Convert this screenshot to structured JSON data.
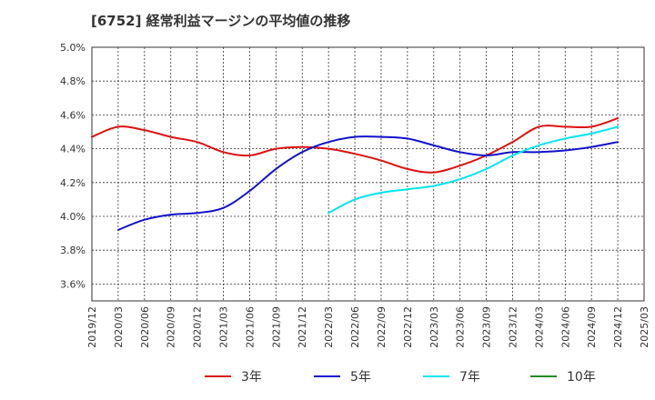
{
  "chart_data": {
    "type": "line",
    "title": "[6752]  経常利益マージンの平均値の推移",
    "ylim": [
      3.5,
      5.0
    ],
    "yticks": [
      "3.6%",
      "3.8%",
      "4.0%",
      "4.2%",
      "4.4%",
      "4.6%",
      "4.8%",
      "5.0%"
    ],
    "ytick_values": [
      3.6,
      3.8,
      4.0,
      4.2,
      4.4,
      4.6,
      4.8,
      5.0
    ],
    "xticks": [
      "2019/12",
      "2020/03",
      "2020/06",
      "2020/09",
      "2020/12",
      "2021/03",
      "2021/06",
      "2021/09",
      "2021/12",
      "2022/03",
      "2022/06",
      "2022/09",
      "2022/12",
      "2023/03",
      "2023/06",
      "2023/09",
      "2023/12",
      "2024/03",
      "2024/06",
      "2024/09",
      "2024/12",
      "2025/03"
    ],
    "grid": true,
    "legend_position": "bottom",
    "series": [
      {
        "name": "3年",
        "color": "#dd1111",
        "points": [
          [
            "2019/12",
            4.47
          ],
          [
            "2020/03",
            4.53
          ],
          [
            "2020/06",
            4.51
          ],
          [
            "2020/09",
            4.47
          ],
          [
            "2020/12",
            4.44
          ],
          [
            "2021/03",
            4.38
          ],
          [
            "2021/06",
            4.36
          ],
          [
            "2021/09",
            4.4
          ],
          [
            "2021/12",
            4.41
          ],
          [
            "2022/03",
            4.4
          ],
          [
            "2022/06",
            4.37
          ],
          [
            "2022/09",
            4.33
          ],
          [
            "2022/12",
            4.28
          ],
          [
            "2023/03",
            4.26
          ],
          [
            "2023/06",
            4.3
          ],
          [
            "2023/09",
            4.36
          ],
          [
            "2023/12",
            4.44
          ],
          [
            "2024/03",
            4.53
          ],
          [
            "2024/06",
            4.53
          ],
          [
            "2024/09",
            4.53
          ],
          [
            "2024/12",
            4.58
          ]
        ]
      },
      {
        "name": "5年",
        "color": "#1111cc",
        "points": [
          [
            "2020/03",
            3.92
          ],
          [
            "2020/06",
            3.98
          ],
          [
            "2020/09",
            4.01
          ],
          [
            "2020/12",
            4.02
          ],
          [
            "2021/03",
            4.05
          ],
          [
            "2021/06",
            4.15
          ],
          [
            "2021/09",
            4.28
          ],
          [
            "2021/12",
            4.38
          ],
          [
            "2022/03",
            4.44
          ],
          [
            "2022/06",
            4.47
          ],
          [
            "2022/09",
            4.47
          ],
          [
            "2022/12",
            4.46
          ],
          [
            "2023/03",
            4.42
          ],
          [
            "2023/06",
            4.38
          ],
          [
            "2023/09",
            4.36
          ],
          [
            "2023/12",
            4.38
          ],
          [
            "2024/03",
            4.38
          ],
          [
            "2024/06",
            4.39
          ],
          [
            "2024/09",
            4.41
          ],
          [
            "2024/12",
            4.44
          ]
        ]
      },
      {
        "name": "7年",
        "color": "#00e5ee",
        "points": [
          [
            "2022/03",
            4.02
          ],
          [
            "2022/06",
            4.1
          ],
          [
            "2022/09",
            4.14
          ],
          [
            "2022/12",
            4.16
          ],
          [
            "2023/03",
            4.18
          ],
          [
            "2023/06",
            4.22
          ],
          [
            "2023/09",
            4.28
          ],
          [
            "2023/12",
            4.36
          ],
          [
            "2024/03",
            4.42
          ],
          [
            "2024/06",
            4.46
          ],
          [
            "2024/09",
            4.49
          ],
          [
            "2024/12",
            4.53
          ]
        ]
      },
      {
        "name": "10年",
        "color": "#228b22",
        "points": []
      }
    ]
  }
}
